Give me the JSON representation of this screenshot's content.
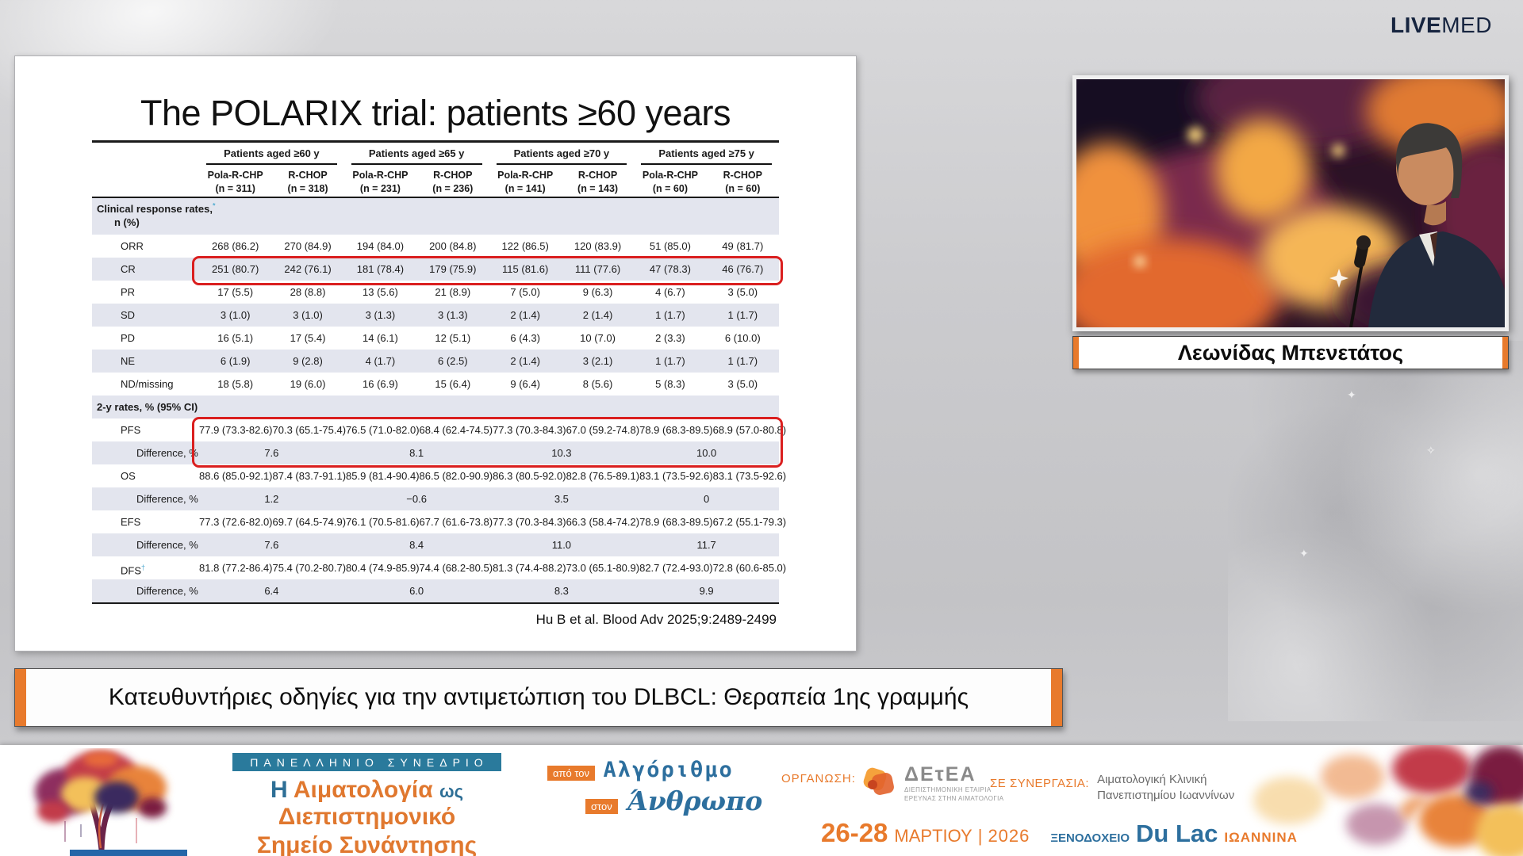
{
  "header": {
    "brand_bold": "LIVE",
    "brand_light": "MED"
  },
  "colors": {
    "accent_orange": "#e87a2c",
    "teal": "#2a7a9c",
    "steel_blue": "#2d6f9e",
    "brand_navy": "#16243f",
    "highlight_red": "#da1f1f",
    "row_shade": "#e3e5ee"
  },
  "slide": {
    "title": "The POLARIX trial: patients ≥60 years",
    "citation": "Hu B et al. Blood Adv 2025;9:2489-2499",
    "table": {
      "groups": [
        "Patients aged ≥60 y",
        "Patients aged ≥65 y",
        "Patients aged ≥70 y",
        "Patients aged ≥75 y"
      ],
      "columns": [
        {
          "drug": "Pola-R-CHP",
          "n": "(n = 311)"
        },
        {
          "drug": "R-CHOP",
          "n": "(n = 318)"
        },
        {
          "drug": "Pola-R-CHP",
          "n": "(n = 231)"
        },
        {
          "drug": "R-CHOP",
          "n": "(n = 236)"
        },
        {
          "drug": "Pola-R-CHP",
          "n": "(n = 141)"
        },
        {
          "drug": "R-CHOP",
          "n": "(n = 143)"
        },
        {
          "drug": "Pola-R-CHP",
          "n": "(n = 60)"
        },
        {
          "drug": "R-CHOP",
          "n": "(n = 60)"
        }
      ],
      "rows": [
        {
          "type": "section",
          "label": "Clinical response rates,",
          "mark": "*",
          "sub": "n (%)"
        },
        {
          "type": "data",
          "label": "ORR",
          "values": [
            "268 (86.2)",
            "270 (84.9)",
            "194 (84.0)",
            "200 (84.8)",
            "122 (86.5)",
            "120 (83.9)",
            "51 (85.0)",
            "49 (81.7)"
          ]
        },
        {
          "type": "data",
          "label": "CR",
          "values": [
            "251 (80.7)",
            "242 (76.1)",
            "181 (78.4)",
            "179 (75.9)",
            "115 (81.6)",
            "111 (77.6)",
            "47 (78.3)",
            "46 (76.7)"
          ]
        },
        {
          "type": "data",
          "label": "PR",
          "values": [
            "17 (5.5)",
            "28 (8.8)",
            "13 (5.6)",
            "21 (8.9)",
            "7 (5.0)",
            "9 (6.3)",
            "4 (6.7)",
            "3 (5.0)"
          ]
        },
        {
          "type": "data",
          "label": "SD",
          "values": [
            "3 (1.0)",
            "3 (1.0)",
            "3 (1.3)",
            "3 (1.3)",
            "2 (1.4)",
            "2 (1.4)",
            "1 (1.7)",
            "1 (1.7)"
          ]
        },
        {
          "type": "data",
          "label": "PD",
          "values": [
            "16 (5.1)",
            "17 (5.4)",
            "14 (6.1)",
            "12 (5.1)",
            "6 (4.3)",
            "10 (7.0)",
            "2 (3.3)",
            "6 (10.0)"
          ]
        },
        {
          "type": "data",
          "label": "NE",
          "values": [
            "6 (1.9)",
            "9 (2.8)",
            "4 (1.7)",
            "6 (2.5)",
            "2 (1.4)",
            "3 (2.1)",
            "1 (1.7)",
            "1 (1.7)"
          ]
        },
        {
          "type": "data",
          "label": "ND/missing",
          "values": [
            "18 (5.8)",
            "19 (6.0)",
            "16 (6.9)",
            "15 (6.4)",
            "9 (6.4)",
            "8 (5.6)",
            "5 (8.3)",
            "3 (5.0)"
          ]
        },
        {
          "type": "section",
          "label": "2-y rates, % (95% CI)"
        },
        {
          "type": "data",
          "label": "PFS",
          "values": [
            "77.9 (73.3-82.6)",
            "70.3 (65.1-75.4)",
            "76.5 (71.0-82.0)",
            "68.4 (62.4-74.5)",
            "77.3 (70.3-84.3)",
            "67.0 (59.2-74.8)",
            "78.9 (68.3-89.5)",
            "68.9 (57.0-80.8)"
          ]
        },
        {
          "type": "diff",
          "label": "Difference, %",
          "values": [
            "7.6",
            "8.1",
            "10.3",
            "10.0"
          ]
        },
        {
          "type": "data",
          "label": "OS",
          "values": [
            "88.6 (85.0-92.1)",
            "87.4 (83.7-91.1)",
            "85.9 (81.4-90.4)",
            "86.5 (82.0-90.9)",
            "86.3 (80.5-92.0)",
            "82.8 (76.5-89.1)",
            "83.1 (73.5-92.6)",
            "83.1 (73.5-92.6)"
          ]
        },
        {
          "type": "diff",
          "label": "Difference, %",
          "values": [
            "1.2",
            "−0.6",
            "3.5",
            "0"
          ]
        },
        {
          "type": "data",
          "label": "EFS",
          "values": [
            "77.3 (72.6-82.0)",
            "69.7 (64.5-74.9)",
            "76.1 (70.5-81.6)",
            "67.7 (61.6-73.8)",
            "77.3 (70.3-84.3)",
            "66.3 (58.4-74.2)",
            "78.9 (68.3-89.5)",
            "67.2 (55.1-79.3)"
          ]
        },
        {
          "type": "diff",
          "label": "Difference, %",
          "values": [
            "7.6",
            "8.4",
            "11.0",
            "11.7"
          ]
        },
        {
          "type": "data",
          "label": "DFS",
          "mark": "†",
          "values": [
            "81.8 (77.2-86.4)",
            "75.4 (70.2-80.7)",
            "80.4 (74.9-85.9)",
            "74.4 (68.2-80.5)",
            "81.3 (74.4-88.2)",
            "73.0 (65.1-80.9)",
            "82.7 (72.4-93.0)",
            "72.8 (60.6-85.0)"
          ]
        },
        {
          "type": "diff",
          "label": "Difference, %",
          "values": [
            "6.4",
            "6.0",
            "8.3",
            "9.9"
          ]
        }
      ]
    }
  },
  "speaker": {
    "name": "Λεωνίδας Μπενετάτος"
  },
  "banner": {
    "title": "Κατευθυντήριες οδηγίες για την αντιμετώπιση του DLBCL: Θεραπεία 1ης γραμμής"
  },
  "footer": {
    "congress_tag": "ΠΑΝΕΛΛΗΝΙΟ ΣΥΝΕΔΡΙΟ",
    "title_h": "Η",
    "title_word1": "Αιματολογία",
    "title_ws": "ως",
    "title_word2": "Διεπιστημονικό",
    "title_line2": "Σημείο Συνάντησης",
    "algo_badge1": "από τον",
    "algo_word1": "Αλγόριθμο",
    "algo_badge2": "στον",
    "algo_word2": "Άνθρωπο",
    "organization_label": "ΟΡΓΑΝΩΣΗ:",
    "detea_name": "ΔΕτΕΑ",
    "detea_sub1": "ΔΙΕΠΙΣΤΗΜΟΝΙΚΗ ΕΤΑΙΡΙΑ",
    "detea_sub2": "ΕΡΕΥΝΑΣ ΣΤΗΝ ΑΙΜΑΤΟΛΟΓΙΑ",
    "synergy_label": "ΣΕ ΣΥΝΕΡΓΑΣΙΑ:",
    "synergy_name1": "Αιματολογική Κλινική",
    "synergy_name2": "Πανεπιστημίου Ιωαννίνων",
    "date_days": "26-28",
    "date_month": "ΜΑΡΤΙΟΥ",
    "date_sep": "|",
    "date_year": "2026",
    "venue_label": "ΞΕΝΟΔΟΧΕΙΟ",
    "venue_name": "Du Lac",
    "venue_city": "ΙΩΑΝΝΙΝΑ"
  }
}
